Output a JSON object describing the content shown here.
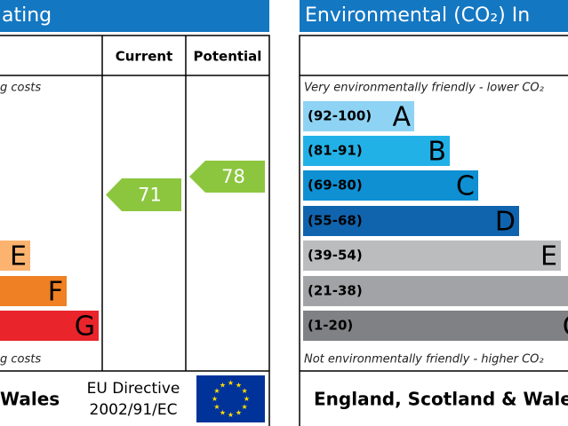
{
  "energy": {
    "title": "ating",
    "col_current": "Current",
    "col_potential": "Potential",
    "top_note": "g costs",
    "bottom_note": "g costs",
    "bands": [
      {
        "letter": "E",
        "color": "#fbb36f"
      },
      {
        "letter": "F",
        "color": "#ef8023"
      },
      {
        "letter": "G",
        "color": "#e9242b"
      }
    ],
    "current": "71",
    "potential": "78",
    "rating_color": "#8cc63f",
    "footer": "Wales",
    "directive_line1": "EU Directive",
    "directive_line2": "2002/91/EC"
  },
  "environmental": {
    "title": "Environmental (CO₂) In",
    "top_note": "Very environmentally friendly - lower CO₂",
    "bottom_note": "Not environmentally friendly - higher CO₂",
    "bands": [
      {
        "range": "(92-100)",
        "letter": "A",
        "color": "#8ed3f4"
      },
      {
        "range": "(81-91)",
        "letter": "B",
        "color": "#22b1e7"
      },
      {
        "range": "(69-80)",
        "letter": "C",
        "color": "#0e90d3"
      },
      {
        "range": "(55-68)",
        "letter": "D",
        "color": "#1064ae"
      },
      {
        "range": "(39-54)",
        "letter": "E",
        "color": "#bbbcbe"
      },
      {
        "range": "(21-38)",
        "letter": "F",
        "color": "#a2a3a6"
      },
      {
        "range": "(1-20)",
        "letter": "G",
        "color": "#808184"
      }
    ],
    "footer": "England, Scotland & Wale"
  }
}
